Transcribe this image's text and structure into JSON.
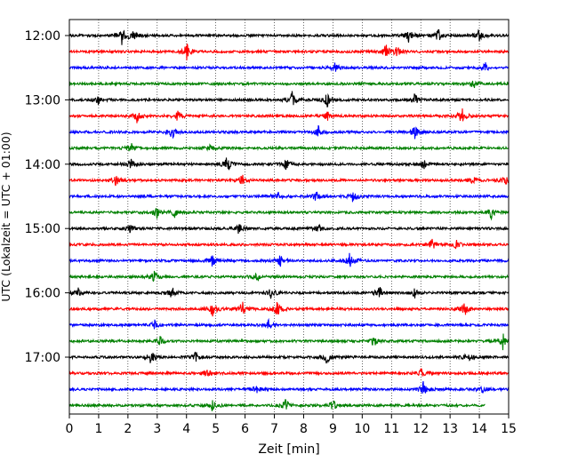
{
  "chart_data": {
    "type": "line",
    "title": "",
    "xlabel": "Zeit  [min]",
    "ylabel": "UTC (Lokalzeit = UTC + 01:00)",
    "xlim": [
      0,
      15
    ],
    "x_ticks": [
      0,
      1,
      2,
      3,
      4,
      5,
      6,
      7,
      8,
      9,
      10,
      11,
      12,
      13,
      14,
      15
    ],
    "y_tick_labels": [
      "12:00",
      "13:00",
      "14:00",
      "15:00",
      "16:00",
      "17:00"
    ],
    "grid": "vertical-dotted",
    "legend": "none",
    "color_cycle": [
      "#000000",
      "#ff0000",
      "#0000ff",
      "#008000"
    ],
    "trace_interval_min": 15,
    "trace_start": "12:00",
    "rows": [
      {
        "start": "12:00",
        "color": "#000000",
        "end_min": 15,
        "events": [
          [
            1.8,
            0.8
          ],
          [
            2.2,
            0.5
          ],
          [
            11.6,
            0.7
          ],
          [
            12.6,
            0.6
          ],
          [
            14.0,
            0.5
          ]
        ]
      },
      {
        "start": "12:15",
        "color": "#ff0000",
        "end_min": 15,
        "events": [
          [
            4.0,
            0.7
          ],
          [
            10.8,
            0.6
          ],
          [
            11.2,
            0.5
          ]
        ]
      },
      {
        "start": "12:30",
        "color": "#0000ff",
        "end_min": 15,
        "events": [
          [
            9.1,
            0.5
          ],
          [
            14.2,
            0.4
          ]
        ]
      },
      {
        "start": "12:45",
        "color": "#008000",
        "end_min": 15,
        "events": [
          [
            13.8,
            0.4
          ]
        ]
      },
      {
        "start": "13:00",
        "color": "#000000",
        "end_min": 15,
        "events": [
          [
            1.0,
            0.4
          ],
          [
            7.6,
            0.7
          ],
          [
            8.8,
            0.6
          ],
          [
            11.8,
            0.5
          ]
        ]
      },
      {
        "start": "13:15",
        "color": "#ff0000",
        "end_min": 15,
        "events": [
          [
            2.3,
            0.6
          ],
          [
            3.7,
            0.5
          ],
          [
            8.8,
            0.4
          ],
          [
            13.4,
            0.7
          ]
        ]
      },
      {
        "start": "13:30",
        "color": "#0000ff",
        "end_min": 15,
        "events": [
          [
            3.5,
            0.6
          ],
          [
            8.5,
            0.5
          ],
          [
            11.8,
            0.6
          ]
        ]
      },
      {
        "start": "13:45",
        "color": "#008000",
        "end_min": 15,
        "events": [
          [
            2.1,
            0.4
          ],
          [
            4.8,
            0.3
          ]
        ]
      },
      {
        "start": "14:00",
        "color": "#000000",
        "end_min": 15,
        "events": [
          [
            2.1,
            0.5
          ],
          [
            5.4,
            0.7
          ],
          [
            7.4,
            0.5
          ],
          [
            12.1,
            0.4
          ]
        ]
      },
      {
        "start": "14:15",
        "color": "#ff0000",
        "end_min": 15,
        "events": [
          [
            1.6,
            0.5
          ],
          [
            5.9,
            0.5
          ],
          [
            13.8,
            0.4
          ],
          [
            14.9,
            0.6
          ]
        ]
      },
      {
        "start": "14:30",
        "color": "#0000ff",
        "end_min": 15,
        "events": [
          [
            7.1,
            0.5
          ],
          [
            8.4,
            0.6
          ],
          [
            9.7,
            0.5
          ]
        ]
      },
      {
        "start": "14:45",
        "color": "#008000",
        "end_min": 15,
        "events": [
          [
            3.0,
            0.5
          ],
          [
            3.6,
            0.4
          ],
          [
            14.4,
            0.6
          ]
        ]
      },
      {
        "start": "15:00",
        "color": "#000000",
        "end_min": 15,
        "events": [
          [
            2.1,
            0.4
          ],
          [
            5.8,
            0.5
          ],
          [
            8.5,
            0.4
          ]
        ]
      },
      {
        "start": "15:15",
        "color": "#ff0000",
        "end_min": 15,
        "events": [
          [
            12.4,
            0.5
          ],
          [
            13.2,
            0.4
          ]
        ]
      },
      {
        "start": "15:30",
        "color": "#0000ff",
        "end_min": 15,
        "events": [
          [
            4.9,
            0.5
          ],
          [
            7.2,
            0.5
          ],
          [
            9.6,
            0.8
          ]
        ]
      },
      {
        "start": "15:45",
        "color": "#008000",
        "end_min": 15,
        "events": [
          [
            2.9,
            0.5
          ],
          [
            6.4,
            0.4
          ]
        ]
      },
      {
        "start": "16:00",
        "color": "#000000",
        "end_min": 15,
        "events": [
          [
            0.3,
            0.6
          ],
          [
            3.5,
            0.5
          ],
          [
            6.9,
            0.5
          ],
          [
            10.6,
            0.5
          ],
          [
            11.8,
            0.4
          ]
        ]
      },
      {
        "start": "16:15",
        "color": "#ff0000",
        "end_min": 15,
        "events": [
          [
            4.9,
            0.8
          ],
          [
            5.9,
            0.7
          ],
          [
            7.1,
            0.7
          ],
          [
            13.5,
            0.6
          ]
        ]
      },
      {
        "start": "16:30",
        "color": "#0000ff",
        "end_min": 15,
        "events": [
          [
            2.9,
            0.4
          ],
          [
            6.8,
            0.4
          ]
        ]
      },
      {
        "start": "16:45",
        "color": "#008000",
        "end_min": 15,
        "events": [
          [
            3.1,
            0.4
          ],
          [
            10.4,
            0.5
          ],
          [
            14.8,
            0.8
          ]
        ]
      },
      {
        "start": "17:00",
        "color": "#000000",
        "end_min": 15,
        "events": [
          [
            2.8,
            0.7
          ],
          [
            4.3,
            0.5
          ],
          [
            8.8,
            0.6
          ],
          [
            13.6,
            0.5
          ]
        ]
      },
      {
        "start": "17:15",
        "color": "#ff0000",
        "end_min": 15,
        "events": [
          [
            4.7,
            0.5
          ],
          [
            12.0,
            0.4
          ]
        ]
      },
      {
        "start": "17:30",
        "color": "#0000ff",
        "end_min": 15,
        "events": [
          [
            6.4,
            0.4
          ],
          [
            12.1,
            0.7
          ],
          [
            14.1,
            0.4
          ]
        ]
      },
      {
        "start": "17:45",
        "color": "#008000",
        "end_min": 14.2,
        "events": [
          [
            4.9,
            0.5
          ],
          [
            7.4,
            0.6
          ],
          [
            9.0,
            0.6
          ]
        ]
      }
    ]
  }
}
